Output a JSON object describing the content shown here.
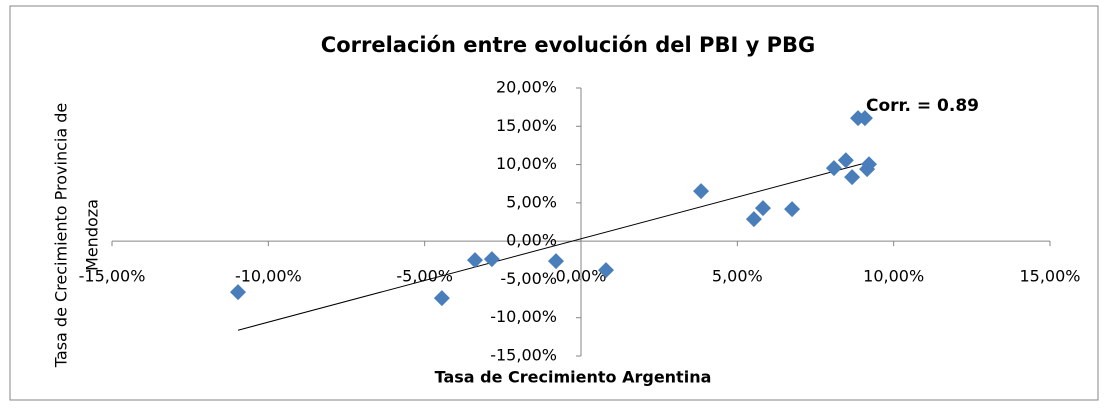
{
  "chart_data": {
    "type": "scatter",
    "title": "Correlación entre evolución del PBI y PBG",
    "x_label": "Tasa de Crecimiento Argentina",
    "y_label": [
      "Tasa de Crecimiento Provincia de",
      "Mendoza"
    ],
    "annotation": "Corr. = 0.89",
    "color": "#4a7ebb",
    "trendline": true,
    "x": [
      -10.97,
      -4.45,
      -3.39,
      -2.85,
      -0.8,
      0.8,
      3.84,
      5.53,
      5.82,
      6.75,
      8.09,
      8.47,
      8.67,
      8.86,
      9.08,
      9.21,
      9.15
    ],
    "values": [
      -6.66,
      -7.44,
      -2.48,
      -2.35,
      -2.61,
      -3.79,
      6.53,
      2.87,
      4.31,
      4.18,
      9.53,
      10.57,
      8.36,
      16.06,
      16.06,
      10.05,
      9.4
    ],
    "xlim": [
      -15,
      15
    ],
    "xticks": [
      {
        "value": -15,
        "label": "-15,00%"
      },
      {
        "value": -10,
        "label": "-10,00%"
      },
      {
        "value": -5,
        "label": "-5,00%"
      },
      {
        "value": 0,
        "label": "0,00%"
      },
      {
        "value": 5,
        "label": "5,00%"
      },
      {
        "value": 10,
        "label": "10,00%"
      },
      {
        "value": 15,
        "label": "15,00%"
      }
    ],
    "ylim": [
      -15,
      20
    ],
    "yticks": [
      {
        "value": -15,
        "label": "-15,00%"
      },
      {
        "value": -10,
        "label": "-10,00%"
      },
      {
        "value": -5,
        "label": "-5,00%"
      },
      {
        "value": 0,
        "label": "0,00%"
      },
      {
        "value": 5,
        "label": "5,00%"
      },
      {
        "value": 10,
        "label": "10,00%"
      },
      {
        "value": 15,
        "label": "15,00%"
      },
      {
        "value": 20,
        "label": "20,00%"
      }
    ]
  }
}
